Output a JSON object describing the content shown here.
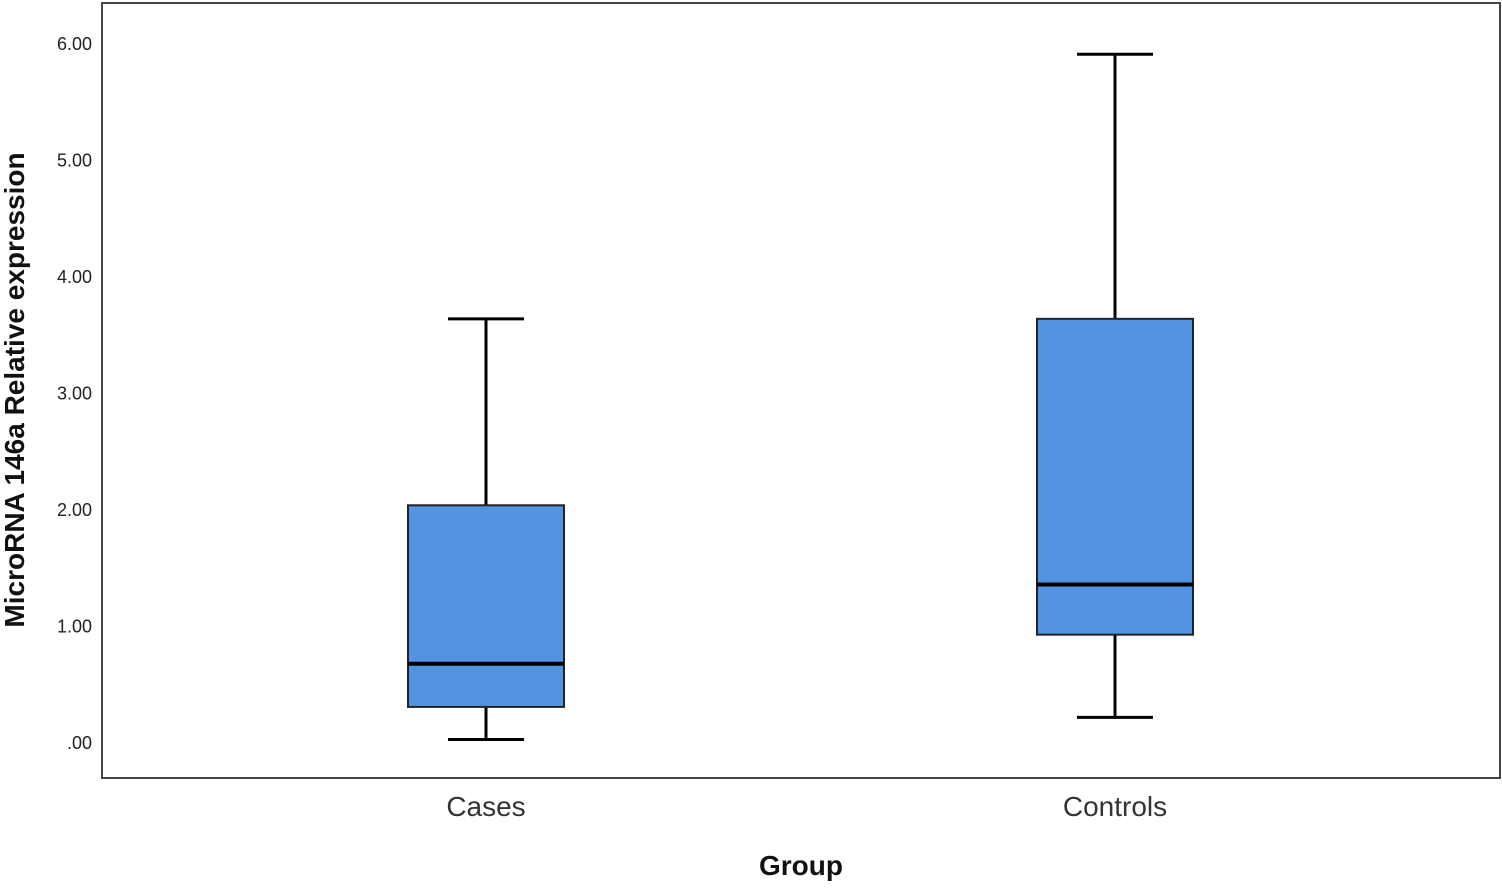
{
  "chart_data": {
    "type": "boxplot",
    "title": "",
    "xlabel": "Group",
    "ylabel": "MicroRNA 146a Relative expression",
    "categories": [
      "Cases",
      "Controls"
    ],
    "boxes": [
      {
        "category": "Cases",
        "whisker_low": 0.03,
        "q1": 0.31,
        "median": 0.68,
        "q3": 2.04,
        "whisker_high": 3.64
      },
      {
        "category": "Controls",
        "whisker_low": 0.22,
        "q1": 0.93,
        "median": 1.36,
        "q3": 3.64,
        "whisker_high": 5.91
      }
    ],
    "yticks": [
      0,
      1,
      2,
      3,
      4,
      5,
      6
    ],
    "ytick_labels": [
      ".00",
      "1.00",
      "2.00",
      "3.00",
      "4.00",
      "5.00",
      "6.00"
    ],
    "ylim": [
      -0.3,
      6.35
    ],
    "grid": false,
    "box_fill": "#5294e2",
    "box_stroke": "#222222",
    "whisker_color": "#000000"
  }
}
